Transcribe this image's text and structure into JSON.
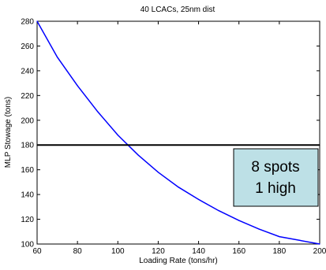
{
  "chart_data": {
    "type": "line",
    "title": "40 LCACs, 25nm dist",
    "xlabel": "Loading Rate (tons/hr)",
    "ylabel": "MLP Stowage (tons)",
    "xlim": [
      60,
      200
    ],
    "ylim": [
      100,
      280
    ],
    "xticks": [
      60,
      80,
      100,
      120,
      140,
      160,
      180,
      200
    ],
    "yticks": [
      100,
      120,
      140,
      160,
      180,
      200,
      220,
      240,
      260,
      280
    ],
    "grid": false,
    "series": [
      {
        "color": "#0000ff",
        "x": [
          60,
          70,
          80,
          90,
          100,
          110,
          120,
          130,
          140,
          150,
          160,
          170,
          180,
          190,
          200
        ],
        "y": [
          280,
          251,
          228,
          207,
          188,
          172,
          158,
          146,
          136,
          127,
          119,
          112,
          106,
          103,
          100
        ]
      },
      {
        "color": "#000000",
        "x": [
          60,
          200
        ],
        "y": [
          180,
          180
        ]
      }
    ],
    "annotation": {
      "lines": [
        "8 spots",
        "1 high"
      ],
      "background": "#bde0e6",
      "anchor": "right-middle"
    }
  }
}
